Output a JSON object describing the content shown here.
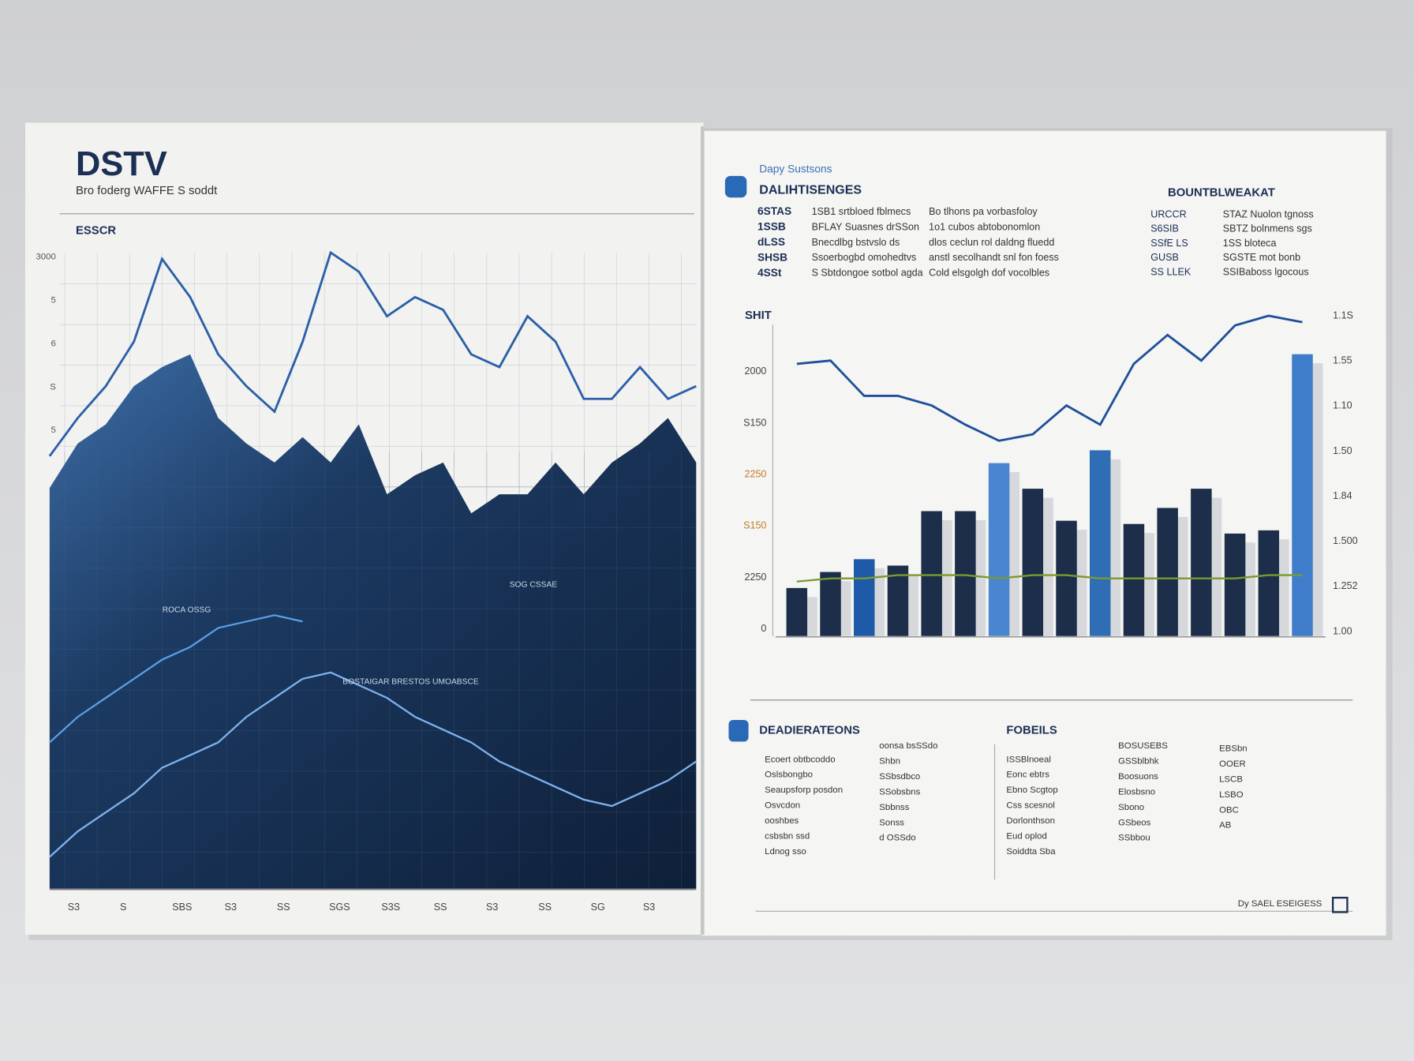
{
  "left_page": {
    "brand": "DSTV",
    "subtitle": "Bro foderg WAFFE S soddt",
    "section": "ESSCR",
    "axis_labels": [
      "3000",
      "5",
      "6",
      "S",
      "5"
    ],
    "x_labels": [
      "S3",
      "S",
      "SBS",
      "S3",
      "SS",
      "SGS",
      "S3S",
      "SS",
      "S3",
      "SS",
      "SG",
      "S3"
    ],
    "annotations": [
      "ROCA OSSG",
      "BOSTAIGAR BRESTOS UMOABSCE",
      "SOG CSSAE"
    ]
  },
  "right_page": {
    "kicker": "Dapy Sustsons",
    "heading": "DALIHTISENGES",
    "table": {
      "rows": [
        [
          "6STAS",
          "1SB1 srtbloed fblmecs",
          "Bo tlhons pa vorbasfoloy"
        ],
        [
          "1SSB",
          "BFLAY Suasnes drSSon",
          "1o1 cubos abtobonomlon"
        ],
        [
          "dLSS",
          "Bnecdlbg bstvslo ds",
          "dlos ceclun rol daldng fluedd"
        ],
        [
          "SHSB",
          "Ssoerbogbd omohedtvs",
          "anstl secolhandt snl fon foess"
        ],
        [
          "4SSt",
          "S Sbtdongoe sotbol agda",
          "Cold elsgolgh dof vocolbles"
        ]
      ]
    },
    "side_heading": "BOUNTBLWEAKAT",
    "side_rows": [
      [
        "URCCR",
        "STAZ Nuolon tgnoss"
      ],
      [
        "S6SIB",
        "SBTZ bolnmens sgs"
      ],
      [
        "SSfE LS",
        "1SS bloteca"
      ],
      [
        "GUSB",
        "SGSTE mot bonb"
      ],
      [
        "SS LLEK",
        "SSIBaboss lgocous"
      ]
    ],
    "chart_label": "SHIT",
    "left_axis_labels": [
      "2000",
      "S150",
      "2250",
      "S150",
      "2250",
      "0"
    ],
    "right_axis_labels": [
      "1.1S",
      "1.55",
      "1.10",
      "1.50",
      "1.84",
      "1.500",
      "1.252",
      "1.00"
    ],
    "bottom": {
      "heading": "DEADIERATEONS",
      "items": [
        "Ecoert obtbcoddo",
        "Oslsbongbo",
        "Seaupsforp posdon",
        "Osvcdon",
        "ooshbes",
        "csbsbn ssd",
        "Ldnog sso"
      ],
      "items2": [
        "oonsa bsSSdo",
        "Shbn",
        "SSbsdbco",
        "SSobsbns",
        "Sbbnss",
        "Sonss",
        "d OSSdo"
      ],
      "heading2": "FOBEILS",
      "items3": [
        "ISSBlnoeal",
        "Eonc ebtrs",
        "Ebno Scgtop",
        "Css scesnol",
        "Dorlonthson",
        "Eud oplod",
        "Soiddta Sba"
      ],
      "items4": [
        "BOSUSEBS",
        "GSSblbhk",
        "Boosuons",
        "Elosbsno",
        "Sbono",
        "GSbeos",
        "SSbbou"
      ],
      "items5": [
        "EBSbn",
        "OOER",
        "LSCB",
        "LSBO",
        "OBC",
        "AB"
      ],
      "footer": "Dy SAEL ESEIGESS"
    }
  },
  "chart_data": [
    {
      "type": "area",
      "ylim": [
        0,
        100
      ],
      "series": [
        {
          "color": "#2b5fa8",
          "values": [
            68,
            74,
            79,
            86,
            99,
            93,
            84,
            79,
            75,
            86,
            100,
            97,
            90,
            93,
            91,
            84,
            82,
            90,
            86,
            77,
            77,
            82,
            77,
            79
          ]
        },
        {
          "color": "#1a3558",
          "values": [
            63,
            70,
            73,
            79,
            82,
            84,
            74,
            70,
            67,
            71,
            67,
            73,
            62,
            65,
            67,
            59,
            62,
            62,
            67,
            62,
            67,
            70,
            74,
            67
          ]
        },
        {
          "color": "#5b9ee6",
          "values": [
            23,
            27,
            30,
            33,
            36,
            38,
            41,
            42,
            43,
            42,
            null,
            null,
            null,
            null,
            null,
            null,
            null,
            null,
            null,
            null,
            null,
            null,
            null,
            null
          ]
        },
        {
          "color": "#7fb2ef",
          "values": [
            5,
            9,
            12,
            15,
            19,
            21,
            23,
            27,
            30,
            33,
            34,
            32,
            30,
            27,
            25,
            23,
            20,
            18,
            16,
            14,
            13,
            15,
            17,
            20
          ]
        }
      ]
    },
    {
      "type": "bar",
      "ylim": [
        0,
        100
      ],
      "bars": {
        "values": [
          15,
          20,
          24,
          22,
          39,
          39,
          54,
          46,
          36,
          58,
          35,
          40,
          46,
          32,
          33,
          88
        ],
        "colors": [
          "#1c2e4a",
          "#1c2e4a",
          "#1f5aa8",
          "#1c2e4a",
          "#1c2e4a",
          "#1c2e4a",
          "#4a86cf",
          "#1c2e4a",
          "#1c2e4a",
          "#2f6db5",
          "#1c2e4a",
          "#1c2e4a",
          "#1c2e4a",
          "#1c2e4a",
          "#1c2e4a",
          "#3f7cc9"
        ]
      },
      "series": [
        {
          "color": "#1f4f9a",
          "values": [
            85,
            86,
            75,
            75,
            72,
            66,
            61,
            63,
            72,
            66,
            85,
            94,
            86,
            97,
            100,
            98
          ]
        },
        {
          "color": "#7a9a2e",
          "values": [
            17,
            18,
            18,
            19,
            19,
            19,
            18,
            19,
            19,
            18,
            18,
            18,
            18,
            18,
            19,
            19
          ]
        }
      ]
    }
  ]
}
